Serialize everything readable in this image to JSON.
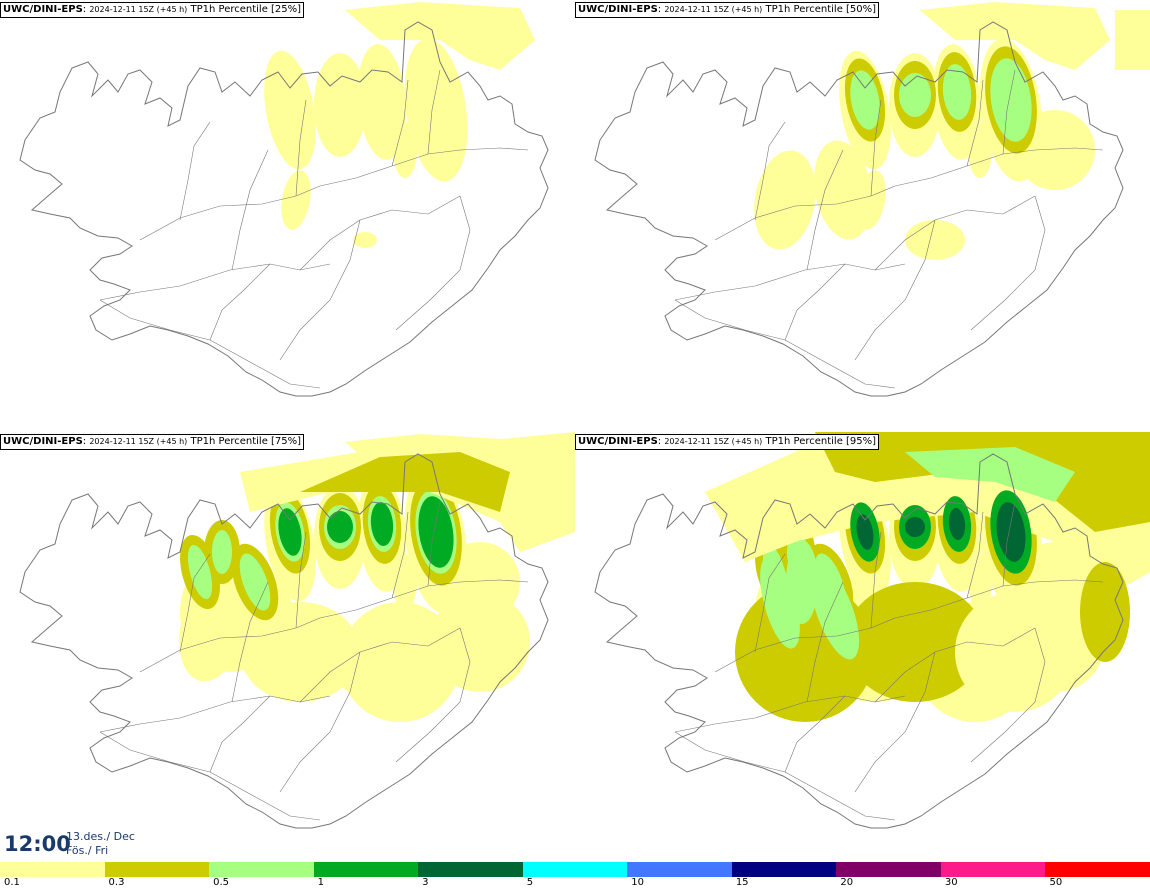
{
  "panels": [
    {
      "model": "UWC/DINI-EPS",
      "sep": ":",
      "info": "2024-12-11 15Z (+45 h)",
      "label": "TP1h Percentile [25%]",
      "level": 1
    },
    {
      "model": "UWC/DINI-EPS",
      "sep": ":",
      "info": "2024-12-11 15Z (+45 h)",
      "label": "TP1h Percentile [50%]",
      "level": 2
    },
    {
      "model": "UWC/DINI-EPS",
      "sep": ":",
      "info": "2024-12-11 15Z (+45 h)",
      "label": "TP1h Percentile [75%]",
      "level": 3
    },
    {
      "model": "UWC/DINI-EPS",
      "sep": ":",
      "info": "2024-12-11 15Z (+45 h)",
      "label": "TP1h Percentile [95%]",
      "level": 4
    }
  ],
  "valid_time": {
    "time": "12:00",
    "date_line1": "13.des./ Dec",
    "date_line2": "Fös./ Fri"
  },
  "legend": {
    "colors": [
      "#ffff99",
      "#cccc00",
      "#a6ff80",
      "#00aa22",
      "#006633",
      "#00ffff",
      "#4477ff",
      "#000080",
      "#800066",
      "#ff1a8c",
      "#ff0000"
    ],
    "ticks": [
      "0.1",
      "0.3",
      "0.5",
      "1",
      "3",
      "5",
      "10",
      "15",
      "20",
      "30",
      "50"
    ]
  },
  "colors": {
    "outline": "#777777",
    "title_text": "#1a3a6b"
  }
}
